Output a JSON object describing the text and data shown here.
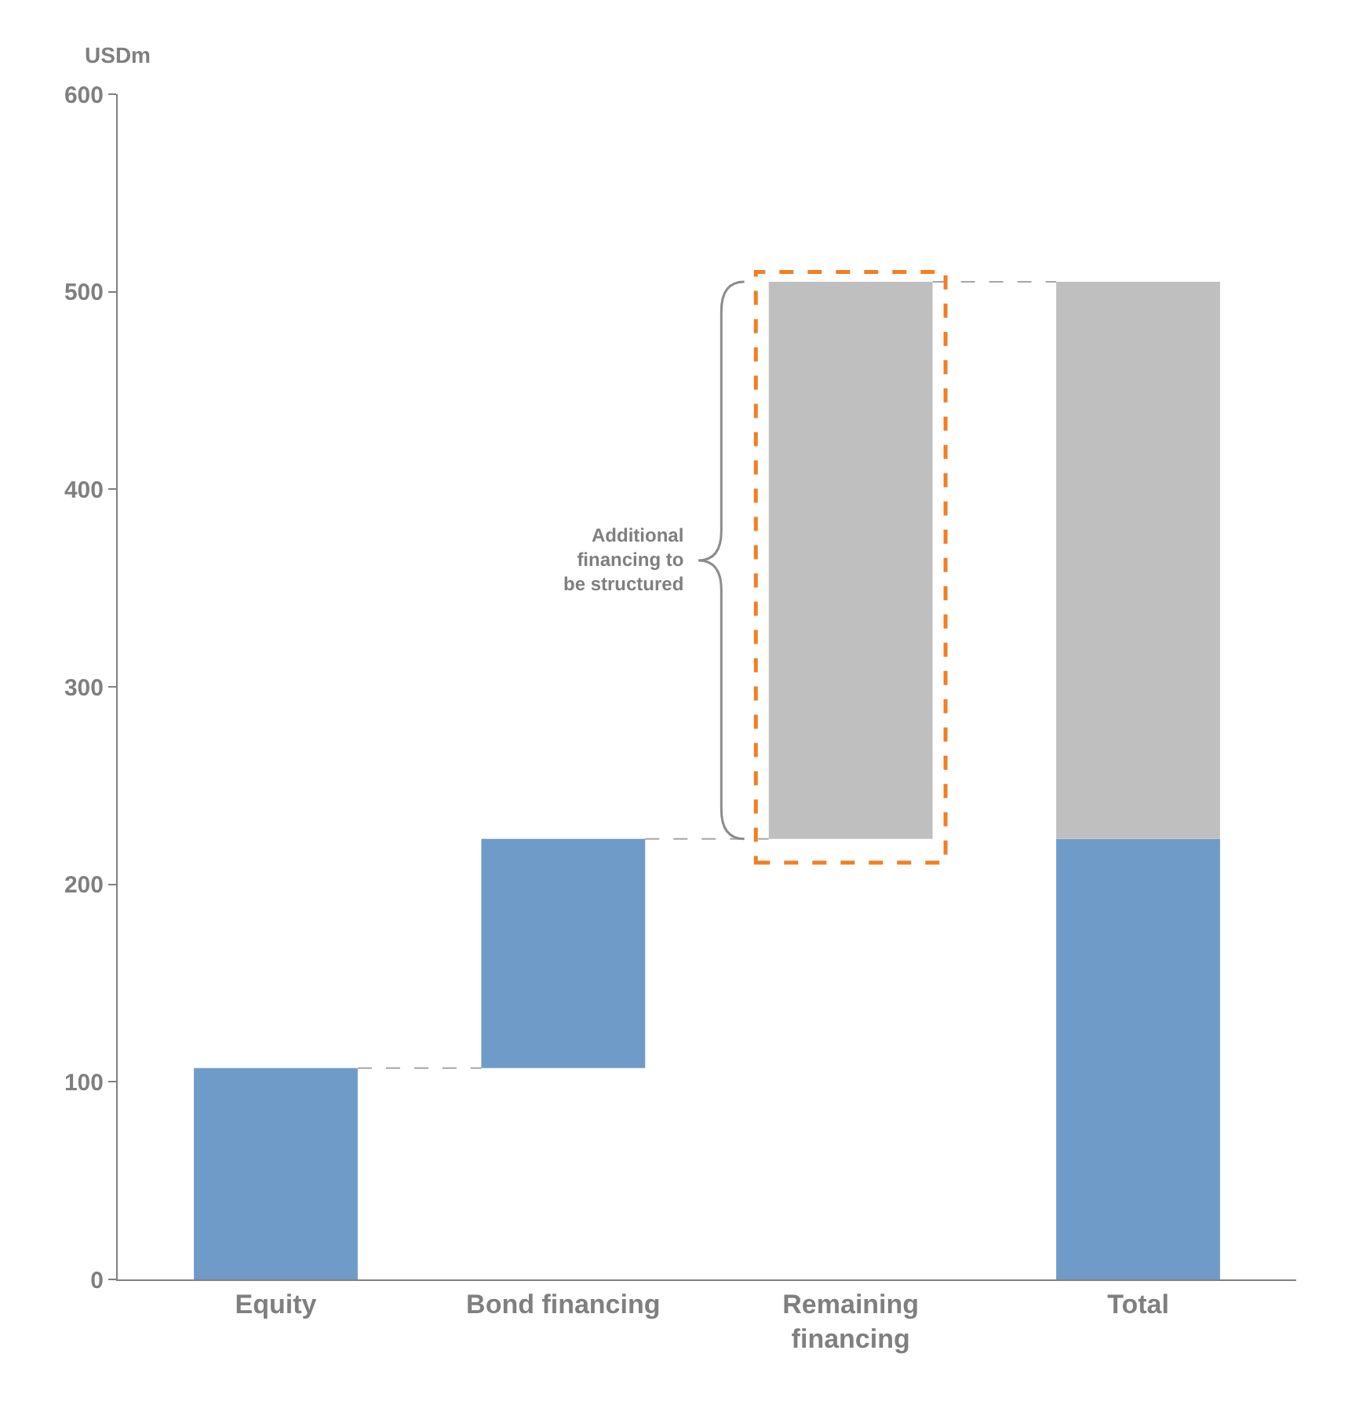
{
  "chart_data": {
    "type": "bar",
    "stacked": true,
    "ylabel": "USDm",
    "categories": [
      "Equity",
      "Bond financing",
      "Remaining financing",
      "Total"
    ],
    "series": [
      {
        "color": "#6f9bc8",
        "values": [
          107,
          116,
          null,
          223
        ],
        "base": [
          0,
          107,
          null,
          0
        ]
      },
      {
        "color": "#bfbfbf",
        "values": [
          null,
          null,
          282,
          282
        ],
        "base": [
          null,
          null,
          223,
          223
        ]
      }
    ],
    "ylim": [
      0,
      600
    ],
    "yticks": [
      0,
      100,
      200,
      300,
      400,
      500,
      600
    ],
    "annotations": [
      "Additional financing to be structured"
    ]
  }
}
